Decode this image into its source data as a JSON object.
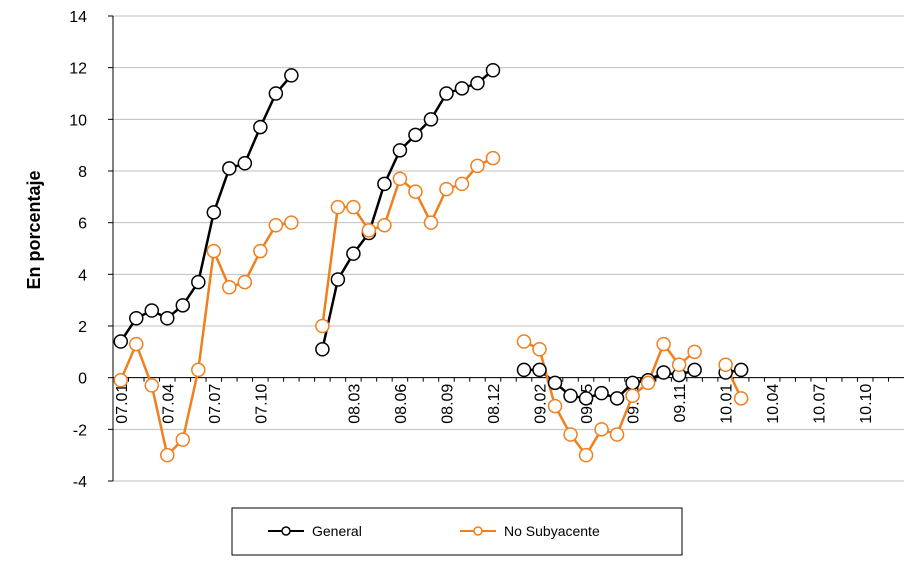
{
  "chart_data": {
    "type": "line",
    "y_label": "En porcentaje",
    "categories": [
      "07.01",
      null,
      null,
      "07.04",
      null,
      null,
      "07.07",
      null,
      null,
      "07.10",
      null,
      null,
      null,
      null,
      null,
      "08.03",
      null,
      null,
      "08.06",
      null,
      null,
      "08.09",
      null,
      null,
      "08.12",
      null,
      null,
      "09.02",
      null,
      null,
      "09.05",
      null,
      null,
      "09.08",
      null,
      null,
      "09.11",
      null,
      null,
      "10.01",
      null,
      null,
      "10.04",
      null,
      null,
      "10.07",
      null,
      null,
      "10.10",
      null,
      null
    ],
    "series": [
      {
        "name": "General",
        "color": "#000000",
        "values": [
          1.4,
          2.3,
          2.6,
          2.3,
          2.8,
          3.7,
          6.4,
          8.1,
          8.3,
          9.7,
          11.0,
          11.7,
          null,
          1.1,
          3.8,
          4.8,
          5.6,
          7.5,
          8.8,
          9.4,
          10.0,
          11.0,
          11.2,
          11.4,
          11.9,
          null,
          0.3,
          0.3,
          -0.2,
          -0.7,
          -0.8,
          -0.6,
          -0.8,
          -0.2,
          -0.1,
          0.2,
          0.1,
          0.3,
          null,
          0.2,
          0.3,
          null,
          null,
          null,
          null,
          null,
          null,
          null,
          null,
          null,
          null
        ]
      },
      {
        "name": "No Subyacente",
        "color": "#f07f1e",
        "values": [
          -0.1,
          1.3,
          -0.3,
          -3.0,
          -2.4,
          0.3,
          4.9,
          3.5,
          3.7,
          4.9,
          5.9,
          6.0,
          null,
          2.0,
          6.6,
          6.6,
          5.7,
          5.9,
          7.7,
          7.2,
          6.0,
          7.3,
          7.5,
          8.2,
          8.5,
          null,
          1.4,
          1.1,
          -1.1,
          -2.2,
          -3.0,
          -2.0,
          -2.2,
          -0.7,
          -0.2,
          1.3,
          0.5,
          1.0,
          null,
          0.5,
          -0.8,
          null,
          null,
          null,
          null,
          null,
          null,
          null,
          null,
          null,
          null
        ]
      }
    ],
    "ylim": [
      -4,
      14
    ],
    "yticks": [
      -4,
      -2,
      0,
      2,
      4,
      6,
      8,
      10,
      12,
      14
    ],
    "grid": true
  }
}
